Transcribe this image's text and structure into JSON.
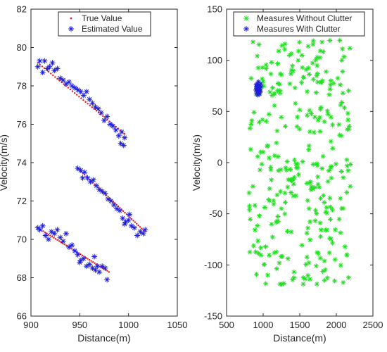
{
  "chart_data": [
    {
      "type": "scatter",
      "xlabel": "Distance(m)",
      "ylabel": "Velocity(m/s)",
      "xlim": [
        900,
        1050
      ],
      "ylim": [
        66,
        82
      ],
      "xticks": [
        900,
        950,
        1000,
        1050
      ],
      "yticks": [
        66,
        68,
        70,
        72,
        74,
        76,
        78,
        80,
        82
      ],
      "grid": false,
      "legend_position": "top-center",
      "series": [
        {
          "name": "True Value",
          "marker": "dot",
          "color": "#e8191a",
          "segments": [
            {
              "x_start": 907,
              "x_end": 996,
              "y_start": 79.2,
              "y_end": 75.5
            },
            {
              "x_start": 948,
              "x_end": 1017,
              "y_start": 73.7,
              "y_end": 70.4
            },
            {
              "x_start": 907,
              "x_end": 980,
              "y_start": 70.6,
              "y_end": 68.3
            }
          ]
        },
        {
          "name": "Estimated Value",
          "marker": "asterisk",
          "color": "#1f1fd9",
          "points": [
            [
              907,
              79.0
            ],
            [
              909,
              79.3
            ],
            [
              912,
              78.7
            ],
            [
              914,
              79.3
            ],
            [
              917,
              78.9
            ],
            [
              919,
              79.0
            ],
            [
              922,
              79.2
            ],
            [
              924,
              78.8
            ],
            [
              927,
              78.9
            ],
            [
              930,
              78.4
            ],
            [
              933,
              78.3
            ],
            [
              936,
              78.1
            ],
            [
              939,
              78.2
            ],
            [
              942,
              78.0
            ],
            [
              945,
              77.9
            ],
            [
              948,
              77.8
            ],
            [
              951,
              77.7
            ],
            [
              954,
              77.5
            ],
            [
              957,
              77.7
            ],
            [
              960,
              77.3
            ],
            [
              963,
              77.1
            ],
            [
              966,
              76.9
            ],
            [
              969,
              76.8
            ],
            [
              972,
              76.6
            ],
            [
              975,
              76.2
            ],
            [
              978,
              76.4
            ],
            [
              981,
              76.0
            ],
            [
              984,
              75.9
            ],
            [
              987,
              75.7
            ],
            [
              990,
              75.4
            ],
            [
              993,
              75.6
            ],
            [
              996,
              75.3
            ],
            [
              992,
              75.0
            ],
            [
              995,
              74.9
            ],
            [
              948,
              73.7
            ],
            [
              951,
              73.6
            ],
            [
              953,
              73.2
            ],
            [
              955,
              73.5
            ],
            [
              958,
              73.2
            ],
            [
              961,
              73.0
            ],
            [
              964,
              73.1
            ],
            [
              967,
              72.8
            ],
            [
              970,
              72.6
            ],
            [
              973,
              72.5
            ],
            [
              976,
              72.4
            ],
            [
              979,
              72.1
            ],
            [
              982,
              72.0
            ],
            [
              985,
              71.8
            ],
            [
              988,
              71.6
            ],
            [
              991,
              71.5
            ],
            [
              994,
              71.1
            ],
            [
              997,
              70.9
            ],
            [
              1000,
              71.0
            ],
            [
              1003,
              70.7
            ],
            [
              1006,
              70.6
            ],
            [
              1009,
              70.2
            ],
            [
              1012,
              70.4
            ],
            [
              1015,
              70.3
            ],
            [
              1017,
              70.5
            ],
            [
              996,
              70.8
            ],
            [
              1001,
              71.3
            ],
            [
              907,
              70.6
            ],
            [
              909,
              70.5
            ],
            [
              912,
              70.7
            ],
            [
              915,
              70.2
            ],
            [
              918,
              70.0
            ],
            [
              921,
              70.4
            ],
            [
              924,
              70.3
            ],
            [
              927,
              70.5
            ],
            [
              930,
              70.1
            ],
            [
              933,
              69.9
            ],
            [
              936,
              70.3
            ],
            [
              939,
              69.6
            ],
            [
              942,
              69.7
            ],
            [
              945,
              69.4
            ],
            [
              948,
              69.2
            ],
            [
              951,
              68.9
            ],
            [
              954,
              69.0
            ],
            [
              957,
              68.6
            ],
            [
              960,
              68.7
            ],
            [
              963,
              68.5
            ],
            [
              966,
              68.4
            ],
            [
              968,
              68.6
            ],
            [
              970,
              68.3
            ],
            [
              973,
              68.6
            ],
            [
              976,
              68.5
            ],
            [
              978,
              67.9
            ],
            [
              965,
              69.1
            ],
            [
              950,
              68.8
            ]
          ]
        }
      ]
    },
    {
      "type": "scatter",
      "xlabel": "Distance(m)",
      "ylabel": "Velocity(m/s)",
      "xlim": [
        500,
        2500
      ],
      "ylim": [
        -150,
        150
      ],
      "xticks": [
        500,
        1000,
        1500,
        2000,
        2500
      ],
      "yticks": [
        -150,
        -100,
        -50,
        0,
        50,
        100,
        150
      ],
      "grid": false,
      "legend_position": "top-center",
      "series": [
        {
          "name": "Measures Without Clutter",
          "marker": "asterisk",
          "color": "#22e022",
          "x_range": [
            800,
            2200
          ],
          "y_range": [
            -120,
            120
          ],
          "count": 320
        },
        {
          "name": "Measures With Clutter",
          "marker": "asterisk",
          "color": "#1f1fd9",
          "points": [
            [
              910,
              74
            ],
            [
              920,
              77
            ],
            [
              930,
              72
            ],
            [
              940,
              75
            ],
            [
              950,
              70
            ],
            [
              960,
              73
            ],
            [
              900,
              71
            ],
            [
              915,
              68
            ],
            [
              925,
              66
            ],
            [
              945,
              68
            ],
            [
              955,
              76
            ],
            [
              935,
              79
            ],
            [
              905,
              76
            ],
            [
              965,
              70
            ],
            [
              970,
              74
            ],
            [
              928,
              71
            ],
            [
              942,
              73
            ],
            [
              912,
              73
            ],
            [
              952,
              67
            ],
            [
              938,
              69
            ],
            [
              918,
              75
            ],
            [
              962,
              77
            ],
            [
              932,
              74
            ],
            [
              948,
              71
            ]
          ]
        }
      ]
    }
  ]
}
